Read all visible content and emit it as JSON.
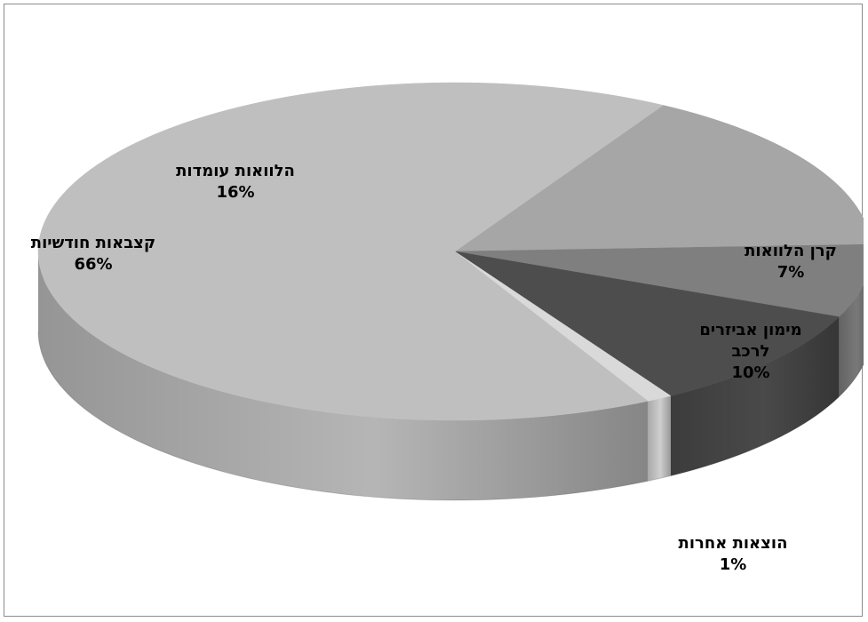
{
  "chart_data": {
    "type": "pie",
    "title": "",
    "slices": [
      {
        "label": "הלוואות עומדות",
        "lines": [
          "הלוואות עומדות"
        ],
        "percent_label": "16%",
        "value": 16,
        "color": "#a6a6a6"
      },
      {
        "label": "קרן הלוואות",
        "lines": [
          "קרן הלוואות"
        ],
        "percent_label": "7%",
        "value": 7,
        "color": "#7f7f7f"
      },
      {
        "label": "מימון אביזרים לרכב",
        "lines": [
          "מימון אביזרים",
          "לרכב"
        ],
        "percent_label": "10%",
        "value": 10,
        "color": "#4d4d4d"
      },
      {
        "label": "הוצאות אחרות",
        "lines": [
          "הוצאות אחרות"
        ],
        "percent_label": "1%",
        "value": 1,
        "color": "#d9d9d9"
      },
      {
        "label": "קצבאות חודשיות",
        "lines": [
          "קצבאות חודשיות"
        ],
        "percent_label": "66%",
        "value": 66,
        "color": "#bfbfbf"
      }
    ],
    "style": "3d",
    "legend": "none"
  }
}
